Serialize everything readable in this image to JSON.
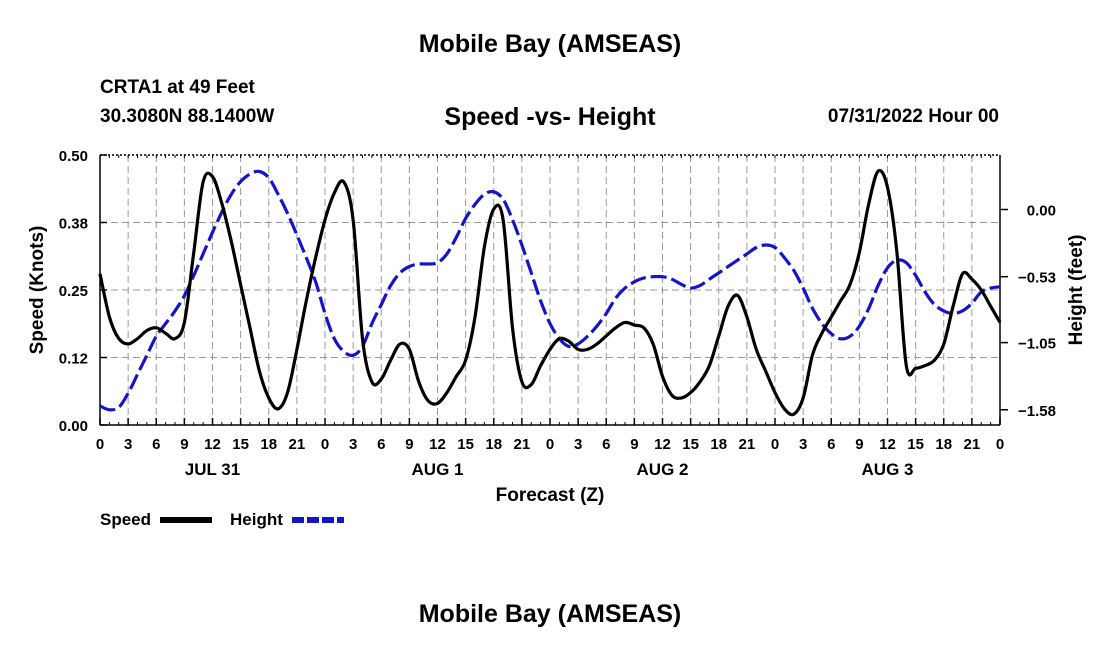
{
  "page": {
    "title_top": "Mobile Bay (AMSEAS)",
    "title_bottom": "Mobile Bay (AMSEAS)",
    "station_name": "CRTA1 at 49 Feet",
    "station_coords": "30.3080N  88.1400W",
    "forecast_start": "07/31/2022 Hour 00"
  },
  "colors": {
    "speed": "#000000",
    "height": "#1414c8",
    "grid": "#9a9a9a"
  },
  "chart_data": {
    "type": "line",
    "title": "Speed -vs- Height",
    "xlabel": "Forecast (Z)",
    "ylabel_left": "Speed (Knots)",
    "ylabel_right": "Height (feet)",
    "x_range_hours": [
      0,
      96
    ],
    "left_ylim": [
      0,
      0.5
    ],
    "left_yticks": [
      0.0,
      0.125,
      0.25,
      0.375,
      0.5
    ],
    "left_ytick_labels": [
      "0.00",
      "0.12",
      "0.25",
      "0.38",
      "0.50"
    ],
    "right_ylim": [
      -1.7,
      0.43
    ],
    "right_yticks": [
      -1.58,
      -1.05,
      -0.53,
      0.0
    ],
    "right_ytick_labels": [
      "−1.58",
      "−1.05",
      "−0.53",
      "0.00"
    ],
    "x_tick_hours": [
      0,
      3,
      6,
      9,
      12,
      15,
      18,
      21,
      24,
      27,
      30,
      33,
      36,
      39,
      42,
      45,
      48,
      51,
      54,
      57,
      60,
      63,
      66,
      69,
      72,
      75,
      78,
      81,
      84,
      87,
      90,
      93,
      96
    ],
    "x_tick_labels": [
      "0",
      "3",
      "6",
      "9",
      "12",
      "15",
      "18",
      "21",
      "0",
      "3",
      "6",
      "9",
      "12",
      "15",
      "18",
      "21",
      "0",
      "3",
      "6",
      "9",
      "12",
      "15",
      "18",
      "21",
      "0",
      "3",
      "6",
      "9",
      "12",
      "15",
      "18",
      "21",
      "0"
    ],
    "day_labels": [
      {
        "hour": 12,
        "label": "JUL 31"
      },
      {
        "hour": 36,
        "label": "AUG 1"
      },
      {
        "hour": 60,
        "label": "AUG 2"
      },
      {
        "hour": 84,
        "label": "AUG 3"
      }
    ],
    "grid": true,
    "legend_position": "bottom-left",
    "series": [
      {
        "name": "Speed",
        "axis": "left",
        "style": "solid",
        "x": [
          0,
          1,
          2,
          3,
          4,
          5,
          6,
          7,
          8,
          9,
          10,
          11,
          12,
          13,
          14,
          15,
          16,
          17,
          18,
          19,
          20,
          21,
          22,
          23,
          24,
          25,
          26,
          27,
          28,
          29,
          30,
          31,
          32,
          33,
          34,
          35,
          36,
          37,
          38,
          39,
          40,
          41,
          42,
          43,
          44,
          45,
          46,
          47,
          48,
          49,
          50,
          51,
          52,
          53,
          54,
          55,
          56,
          57,
          58,
          59,
          60,
          61,
          62,
          63,
          64,
          65,
          66,
          67,
          68,
          69,
          70,
          71,
          72,
          73,
          74,
          75,
          76,
          77,
          78,
          79,
          80,
          81,
          82,
          83,
          84,
          85,
          86,
          87,
          88,
          89,
          90,
          91,
          92,
          93,
          94,
          95,
          96
        ],
        "values": [
          0.28,
          0.2,
          0.16,
          0.15,
          0.16,
          0.175,
          0.18,
          0.17,
          0.16,
          0.19,
          0.32,
          0.45,
          0.46,
          0.41,
          0.34,
          0.26,
          0.18,
          0.1,
          0.05,
          0.03,
          0.06,
          0.14,
          0.23,
          0.31,
          0.38,
          0.43,
          0.45,
          0.38,
          0.16,
          0.08,
          0.085,
          0.12,
          0.15,
          0.14,
          0.08,
          0.045,
          0.04,
          0.06,
          0.09,
          0.12,
          0.2,
          0.33,
          0.4,
          0.38,
          0.18,
          0.08,
          0.075,
          0.11,
          0.14,
          0.16,
          0.155,
          0.14,
          0.14,
          0.15,
          0.165,
          0.18,
          0.19,
          0.185,
          0.18,
          0.15,
          0.09,
          0.055,
          0.05,
          0.06,
          0.08,
          0.11,
          0.165,
          0.22,
          0.24,
          0.2,
          0.14,
          0.1,
          0.06,
          0.03,
          0.02,
          0.05,
          0.13,
          0.17,
          0.2,
          0.23,
          0.26,
          0.32,
          0.41,
          0.47,
          0.44,
          0.32,
          0.11,
          0.105,
          0.11,
          0.12,
          0.15,
          0.22,
          0.28,
          0.27,
          0.25,
          0.22,
          0.19
        ]
      },
      {
        "name": "Height",
        "axis": "right",
        "style": "dashed",
        "x": [
          0,
          1,
          2,
          3,
          4,
          5,
          6,
          7,
          8,
          9,
          10,
          11,
          12,
          13,
          14,
          15,
          16,
          17,
          18,
          19,
          20,
          21,
          22,
          23,
          24,
          25,
          26,
          27,
          28,
          29,
          30,
          31,
          32,
          33,
          34,
          35,
          36,
          37,
          38,
          39,
          40,
          41,
          42,
          43,
          44,
          45,
          46,
          47,
          48,
          49,
          50,
          51,
          52,
          53,
          54,
          55,
          56,
          57,
          58,
          59,
          60,
          61,
          62,
          63,
          64,
          65,
          66,
          67,
          68,
          69,
          70,
          71,
          72,
          73,
          74,
          75,
          76,
          77,
          78,
          79,
          80,
          81,
          82,
          83,
          84,
          85,
          86,
          87,
          88,
          89,
          90,
          91,
          92,
          93,
          94,
          95,
          96
        ],
        "values": [
          -1.55,
          -1.58,
          -1.56,
          -1.45,
          -1.3,
          -1.15,
          -1.0,
          -0.9,
          -0.8,
          -0.68,
          -0.52,
          -0.35,
          -0.18,
          -0.02,
          0.12,
          0.22,
          0.28,
          0.3,
          0.25,
          0.12,
          -0.03,
          -0.2,
          -0.38,
          -0.57,
          -0.82,
          -1.02,
          -1.12,
          -1.15,
          -1.08,
          -0.9,
          -0.75,
          -0.6,
          -0.5,
          -0.45,
          -0.43,
          -0.43,
          -0.42,
          -0.35,
          -0.22,
          -0.07,
          0.04,
          0.12,
          0.14,
          0.08,
          -0.08,
          -0.28,
          -0.5,
          -0.72,
          -0.9,
          -1.02,
          -1.08,
          -1.06,
          -1.0,
          -0.92,
          -0.82,
          -0.7,
          -0.62,
          -0.57,
          -0.54,
          -0.53,
          -0.53,
          -0.55,
          -0.59,
          -0.62,
          -0.6,
          -0.55,
          -0.5,
          -0.45,
          -0.4,
          -0.35,
          -0.3,
          -0.28,
          -0.3,
          -0.38,
          -0.48,
          -0.62,
          -0.78,
          -0.9,
          -0.98,
          -1.02,
          -1.0,
          -0.92,
          -0.78,
          -0.6,
          -0.46,
          -0.4,
          -0.42,
          -0.52,
          -0.65,
          -0.75,
          -0.8,
          -0.82,
          -0.8,
          -0.74,
          -0.65,
          -0.62,
          -0.61
        ]
      }
    ]
  }
}
